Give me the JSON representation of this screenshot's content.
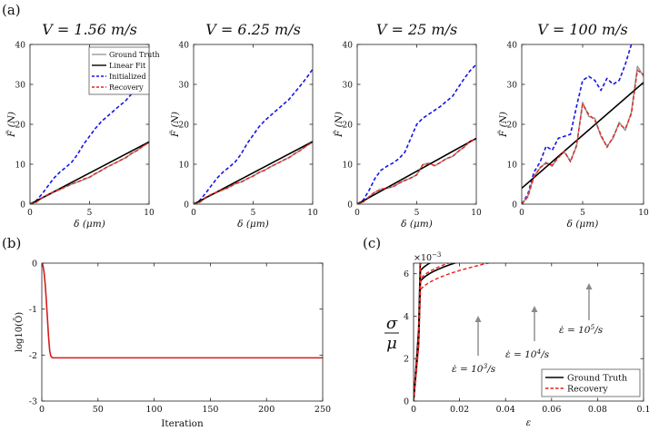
{
  "panel_labels": [
    "(a)",
    "(b)",
    "(c)"
  ],
  "colors": {
    "ground_truth": "#9a9a9a",
    "linear_fit": "#000000",
    "initialized": "#1515e8",
    "recovery": "#e8211b",
    "objective": "#d81b1b"
  },
  "chart_data": [
    {
      "type": "line",
      "panel": "(a)",
      "title": "V = 1.56 m/s",
      "xlabel": "δ (μm)",
      "ylabel": "F̃ (N)",
      "xlim": [
        0,
        10
      ],
      "ylim": [
        0,
        40
      ],
      "xticks": [
        0,
        5,
        10
      ],
      "yticks": [
        0,
        10,
        20,
        30,
        40
      ],
      "legend": {
        "placement": "top-right",
        "entries": [
          "Ground Truth",
          "Linear Fit",
          "Initialized",
          "Recovery"
        ]
      },
      "series": [
        {
          "name": "Ground Truth",
          "style": "solid-gray",
          "x": [
            0,
            0.5,
            1,
            1.5,
            2,
            2.5,
            3,
            3.5,
            4,
            4.5,
            5,
            5.5,
            6,
            6.5,
            7,
            7.5,
            8,
            8.5,
            9,
            9.5,
            10
          ],
          "y": [
            0,
            0.5,
            1.5,
            2.2,
            3,
            3.6,
            4.4,
            5,
            5.6,
            6.1,
            6.8,
            7.6,
            8.5,
            9.3,
            10.1,
            10.8,
            11.6,
            12.6,
            13.5,
            14.5,
            15.5
          ]
        },
        {
          "name": "Linear Fit",
          "style": "solid-black",
          "x": [
            0,
            10
          ],
          "y": [
            0,
            15.6
          ]
        },
        {
          "name": "Initialized",
          "style": "dash-blue",
          "x": [
            0,
            0.5,
            1,
            1.5,
            2,
            2.5,
            3,
            3.5,
            4,
            4.5,
            5,
            5.5,
            6,
            6.5,
            7,
            7.5,
            8,
            8.5,
            9,
            9.5,
            10
          ],
          "y": [
            0,
            0.8,
            2.5,
            4.5,
            6.5,
            8,
            9.2,
            10.5,
            12.5,
            15,
            17,
            19,
            20.7,
            22,
            23.3,
            24.6,
            25.8,
            27.5,
            29.3,
            31.3,
            33.5
          ]
        },
        {
          "name": "Recovery",
          "style": "dash-red",
          "x": [
            0,
            0.5,
            1,
            1.5,
            2,
            2.5,
            3,
            3.5,
            4,
            4.5,
            5,
            5.5,
            6,
            6.5,
            7,
            7.5,
            8,
            8.5,
            9,
            9.5,
            10
          ],
          "y": [
            0,
            0.4,
            1.6,
            2.4,
            3.1,
            3.8,
            4.3,
            5.1,
            5.5,
            6.3,
            6.7,
            7.7,
            8.4,
            9.4,
            10,
            10.9,
            11.5,
            12.7,
            13.4,
            14.6,
            15.4
          ]
        }
      ]
    },
    {
      "type": "line",
      "panel": "(a)",
      "title": "V = 6.25 m/s",
      "xlabel": "δ (μm)",
      "ylabel": "F̃ (N)",
      "xlim": [
        0,
        10
      ],
      "ylim": [
        0,
        40
      ],
      "xticks": [
        0,
        5,
        10
      ],
      "yticks": [
        0,
        10,
        20,
        30,
        40
      ],
      "series": [
        {
          "name": "Ground Truth",
          "style": "solid-gray",
          "x": [
            0,
            0.5,
            1,
            1.5,
            2,
            2.5,
            3,
            3.5,
            4,
            4.5,
            5,
            5.5,
            6,
            6.5,
            7,
            7.5,
            8,
            8.5,
            9,
            9.5,
            10
          ],
          "y": [
            0,
            0.5,
            1.6,
            2.3,
            3,
            3.6,
            4.3,
            5.1,
            5.6,
            6.3,
            7.1,
            7.9,
            8.6,
            9.4,
            10.2,
            10.9,
            11.7,
            12.6,
            13.6,
            14.6,
            15.6
          ]
        },
        {
          "name": "Linear Fit",
          "style": "solid-black",
          "x": [
            0,
            10
          ],
          "y": [
            0,
            15.7
          ]
        },
        {
          "name": "Initialized",
          "style": "dash-blue",
          "x": [
            0,
            0.5,
            1,
            1.5,
            2,
            2.5,
            3,
            3.5,
            4,
            4.5,
            5,
            5.5,
            6,
            6.5,
            7,
            7.5,
            8,
            8.5,
            9,
            9.5,
            10
          ],
          "y": [
            0,
            0.9,
            2.7,
            4.7,
            6.6,
            8.1,
            9.3,
            10.6,
            12.6,
            15.2,
            17.3,
            19.4,
            21,
            22.3,
            23.6,
            24.9,
            26.2,
            28,
            29.8,
            31.7,
            33.8
          ]
        },
        {
          "name": "Recovery",
          "style": "dash-red",
          "x": [
            0,
            0.5,
            1,
            1.5,
            2,
            2.5,
            3,
            3.5,
            4,
            4.5,
            5,
            5.5,
            6,
            6.5,
            7,
            7.5,
            8,
            8.5,
            9,
            9.5,
            10
          ],
          "y": [
            0,
            0.4,
            1.7,
            2.5,
            3.1,
            3.7,
            4.2,
            5.2,
            5.5,
            6.4,
            7,
            8,
            8.5,
            9.5,
            10.1,
            11,
            11.6,
            12.7,
            13.5,
            14.7,
            15.5
          ]
        }
      ]
    },
    {
      "type": "line",
      "panel": "(a)",
      "title": "V = 25 m/s",
      "xlabel": "δ (μm)",
      "ylabel": "F̃ (N)",
      "xlim": [
        0,
        10
      ],
      "ylim": [
        0,
        40
      ],
      "xticks": [
        0,
        5,
        10
      ],
      "yticks": [
        0,
        10,
        20,
        30,
        40
      ],
      "series": [
        {
          "name": "Ground Truth",
          "style": "solid-gray",
          "x": [
            0,
            0.5,
            1,
            1.5,
            2,
            2.5,
            3,
            3.5,
            4,
            4.5,
            5,
            5.5,
            6,
            6.5,
            7,
            7.5,
            8,
            8.5,
            9,
            9.5,
            10
          ],
          "y": [
            0,
            0.6,
            1.8,
            3,
            3.8,
            4,
            4.4,
            5.2,
            6,
            6.5,
            7.4,
            9.8,
            10.3,
            9.6,
            10.5,
            11.4,
            12,
            13.2,
            14.4,
            15.8,
            16.3
          ]
        },
        {
          "name": "Linear Fit",
          "style": "solid-black",
          "x": [
            0,
            10
          ],
          "y": [
            0,
            16.5
          ]
        },
        {
          "name": "Initialized",
          "style": "dash-blue",
          "x": [
            0,
            0.5,
            1,
            1.5,
            2,
            2.5,
            3,
            3.5,
            4,
            4.5,
            5,
            5.5,
            6,
            6.5,
            7,
            7.5,
            8,
            8.5,
            9,
            9.5,
            10
          ],
          "y": [
            0,
            1,
            3.5,
            6.5,
            8.5,
            9.5,
            10.3,
            11.4,
            13,
            16.5,
            20,
            21.5,
            22.5,
            23.5,
            24.5,
            25.8,
            27,
            29.3,
            31.5,
            33.5,
            35
          ]
        },
        {
          "name": "Recovery",
          "style": "dash-red",
          "x": [
            0,
            0.5,
            1,
            1.5,
            2,
            2.5,
            3,
            3.5,
            4,
            4.5,
            5,
            5.5,
            6,
            6.5,
            7,
            7.5,
            8,
            8.5,
            9,
            9.5,
            10
          ],
          "y": [
            0,
            0.5,
            1.9,
            3.1,
            3.7,
            4.1,
            4.3,
            5.3,
            5.9,
            6.6,
            7.3,
            9.9,
            10.1,
            9.7,
            10.4,
            11.5,
            11.9,
            13.3,
            14.3,
            15.9,
            16.2
          ]
        }
      ]
    },
    {
      "type": "line",
      "panel": "(a)",
      "title": "V = 100 m/s",
      "xlabel": "δ (μm)",
      "ylabel": "F̃ (N)",
      "xlim": [
        0,
        10
      ],
      "ylim": [
        0,
        40
      ],
      "xticks": [
        0,
        5,
        10
      ],
      "yticks": [
        0,
        10,
        20,
        30,
        40
      ],
      "series": [
        {
          "name": "Ground Truth",
          "style": "solid-gray",
          "x": [
            0,
            0.5,
            1,
            1.5,
            2,
            2.5,
            3,
            3.5,
            4,
            4.5,
            5,
            5.5,
            6,
            6.5,
            7,
            7.5,
            8,
            8.5,
            9,
            9.5,
            10
          ],
          "y": [
            0,
            2,
            7,
            9,
            10.5,
            9.5,
            12,
            13,
            10.8,
            14.5,
            25.5,
            22,
            21.5,
            17,
            14.5,
            16.5,
            20.5,
            18.5,
            23,
            34.5,
            32
          ]
        },
        {
          "name": "Linear Fit",
          "style": "solid-black",
          "x": [
            0,
            10
          ],
          "y": [
            4,
            30.5
          ]
        },
        {
          "name": "Initialized",
          "style": "dash-blue",
          "x": [
            0,
            0.5,
            1,
            1.5,
            2,
            2.5,
            3,
            3.5,
            4,
            4.5,
            5,
            5.5,
            6,
            6.5,
            7,
            7.5,
            8,
            8.5,
            9,
            9.5,
            10
          ],
          "y": [
            0,
            2.5,
            8,
            10.5,
            14.5,
            13.5,
            16.5,
            17,
            17.5,
            24.5,
            31,
            32,
            31,
            28.5,
            31.5,
            30,
            31,
            35,
            40,
            44,
            46
          ]
        },
        {
          "name": "Recovery",
          "style": "dash-red",
          "x": [
            0,
            0.5,
            1,
            1.5,
            2,
            2.5,
            3,
            3.5,
            4,
            4.5,
            5,
            5.5,
            6,
            6.5,
            7,
            7.5,
            8,
            8.5,
            9,
            9.5,
            10
          ],
          "y": [
            0,
            1.8,
            6.8,
            9.2,
            10.2,
            9.8,
            11.6,
            13.3,
            10.6,
            14.8,
            25,
            22.5,
            21,
            17.4,
            14.2,
            16.9,
            20.1,
            18.9,
            22.6,
            33.5,
            32.5
          ]
        }
      ]
    },
    {
      "type": "line",
      "panel": "(b)",
      "xlabel": "Iteration",
      "ylabel": "log10(Ō)",
      "xlim": [
        0,
        250
      ],
      "ylim": [
        -3,
        0
      ],
      "xticks": [
        0,
        50,
        100,
        150,
        200,
        250
      ],
      "yticks": [
        0,
        -1,
        -2,
        -3
      ],
      "series": [
        {
          "name": "objective",
          "style": "solid-red",
          "x": [
            0,
            1,
            2,
            3,
            4,
            5,
            6,
            7,
            8,
            9,
            10,
            12,
            15,
            20,
            30,
            50,
            100,
            150,
            200,
            250
          ],
          "y": [
            0,
            -0.05,
            -0.2,
            -0.45,
            -0.8,
            -1.2,
            -1.6,
            -1.9,
            -2.02,
            -2.05,
            -2.06,
            -2.06,
            -2.06,
            -2.06,
            -2.06,
            -2.06,
            -2.06,
            -2.06,
            -2.06,
            -2.06
          ]
        }
      ]
    },
    {
      "type": "line",
      "panel": "(c)",
      "xlabel": "ε",
      "ylabel_num": "σ",
      "ylabel_den": "μ",
      "xlim": [
        0,
        0.1
      ],
      "ylim": [
        0,
        0.0065
      ],
      "xticks": [
        0,
        0.02,
        0.04,
        0.06,
        0.08,
        0.1
      ],
      "yticks": [
        0,
        2,
        4,
        6
      ],
      "y_multiplier": "×10",
      "y_multiplier_exp": "−3",
      "legend": {
        "placement": "bottom-right",
        "entries": [
          "Ground Truth",
          "Recovery"
        ]
      },
      "annotations": [
        {
          "text": "ε̇ = 10",
          "exp": "3",
          "unit": "/s"
        },
        {
          "text": "ε̇ = 10",
          "exp": "4",
          "unit": "/s"
        },
        {
          "text": "ε̇ = 10",
          "exp": "5",
          "unit": "/s"
        }
      ],
      "series": [
        {
          "name": "Ground Truth",
          "style": "solid-black",
          "rate": "1e3",
          "y_elastic": 2.7,
          "y_end": 5.45
        },
        {
          "name": "Ground Truth",
          "style": "solid-black",
          "rate": "1e4",
          "y_elastic": 2.95,
          "y_end": 5.65
        },
        {
          "name": "Ground Truth",
          "style": "solid-black",
          "rate": "1e5",
          "y_elastic": 3.35,
          "y_end": 6.25
        },
        {
          "name": "Recovery",
          "style": "dash-red",
          "rate": "1e3",
          "y_elastic": 2.5,
          "y_end": 5.2
        },
        {
          "name": "Recovery",
          "style": "dash-red",
          "rate": "1e4",
          "y_elastic": 2.75,
          "y_end": 5.5
        },
        {
          "name": "Recovery",
          "style": "dash-red",
          "rate": "1e5",
          "y_elastic": 3.1,
          "y_end": 5.9
        }
      ]
    }
  ]
}
